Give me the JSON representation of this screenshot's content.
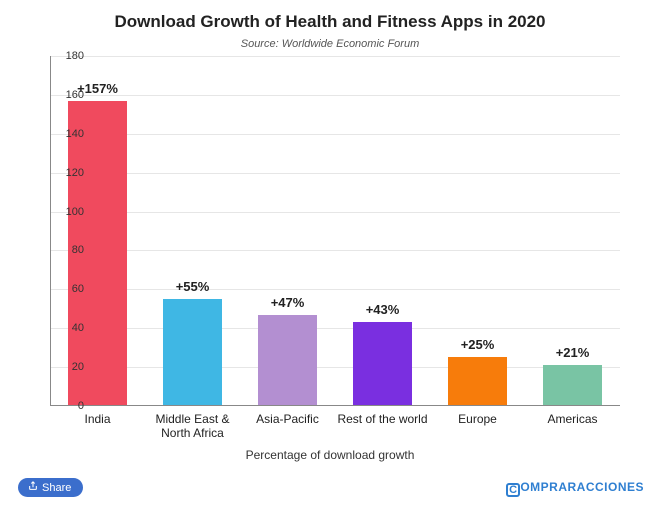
{
  "chart": {
    "type": "bar",
    "title": "Download Growth of Health and Fitness Apps in 2020",
    "title_fontsize": 17,
    "subtitle": "Source: Worldwide Economic Forum",
    "subtitle_fontsize": 11,
    "x_axis_title": "Percentage of download growth",
    "x_axis_title_fontsize": 12,
    "background_color": "#ffffff",
    "grid_color": "#e6e6e6",
    "ylim": [
      0,
      180
    ],
    "ytick_step": 20,
    "yticks": [
      0,
      20,
      40,
      60,
      80,
      100,
      120,
      140,
      160,
      180
    ],
    "tick_fontsize": 11,
    "value_label_fontsize": 13,
    "x_label_fontsize": 12,
    "bar_width_ratio": 0.62,
    "categories": [
      "India",
      "Middle East &\nNorth Africa",
      "Asia-Pacific",
      "Rest of the world",
      "Europe",
      "Americas"
    ],
    "values": [
      157,
      55,
      47,
      43,
      25,
      21
    ],
    "value_labels": [
      "+157%",
      "+55%",
      "+47%",
      "+43%",
      "+25%",
      "+21%"
    ],
    "bar_colors": [
      "#f04a5e",
      "#3fb7e4",
      "#b38fd1",
      "#7a2fe0",
      "#f77c0b",
      "#79c4a4"
    ]
  },
  "footer": {
    "share_label": "Share",
    "brand_text": "OMPRARACCIONES",
    "brand_initial": "C",
    "brand_color": "#2f7fd1",
    "brand_fontsize": 12
  }
}
